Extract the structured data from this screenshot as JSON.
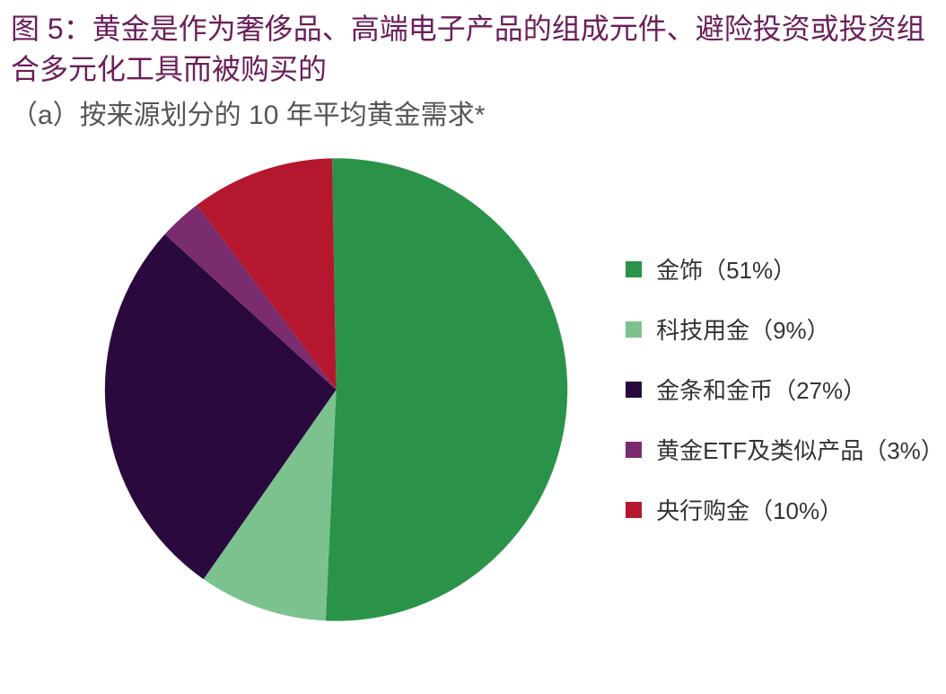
{
  "title": "图 5：黄金是作为奢侈品、高端电子产品的组成元件、避险投资或投资组合多元化工具而被购买的",
  "subtitle": "（a）按来源划分的 10 年平均黄金需求*",
  "chart": {
    "type": "pie",
    "start_angle_deg": -91,
    "slices": [
      {
        "label": "金饰（51%）",
        "value": 51,
        "color": "#2b9349"
      },
      {
        "label": "科技用金（9%）",
        "value": 9,
        "color": "#7cc28f"
      },
      {
        "label": "金条和金币（27%）",
        "value": 27,
        "color": "#2a0a3e"
      },
      {
        "label": "黄金ETF及类似产品（3%）",
        "value": 3,
        "color": "#7a2c6e"
      },
      {
        "label": "央行购金（10%）",
        "value": 10,
        "color": "#b5182e"
      }
    ],
    "legend_fontsize": 26,
    "background_color": "#ffffff",
    "title_color": "#6b1e5a",
    "subtitle_color": "#555555"
  }
}
